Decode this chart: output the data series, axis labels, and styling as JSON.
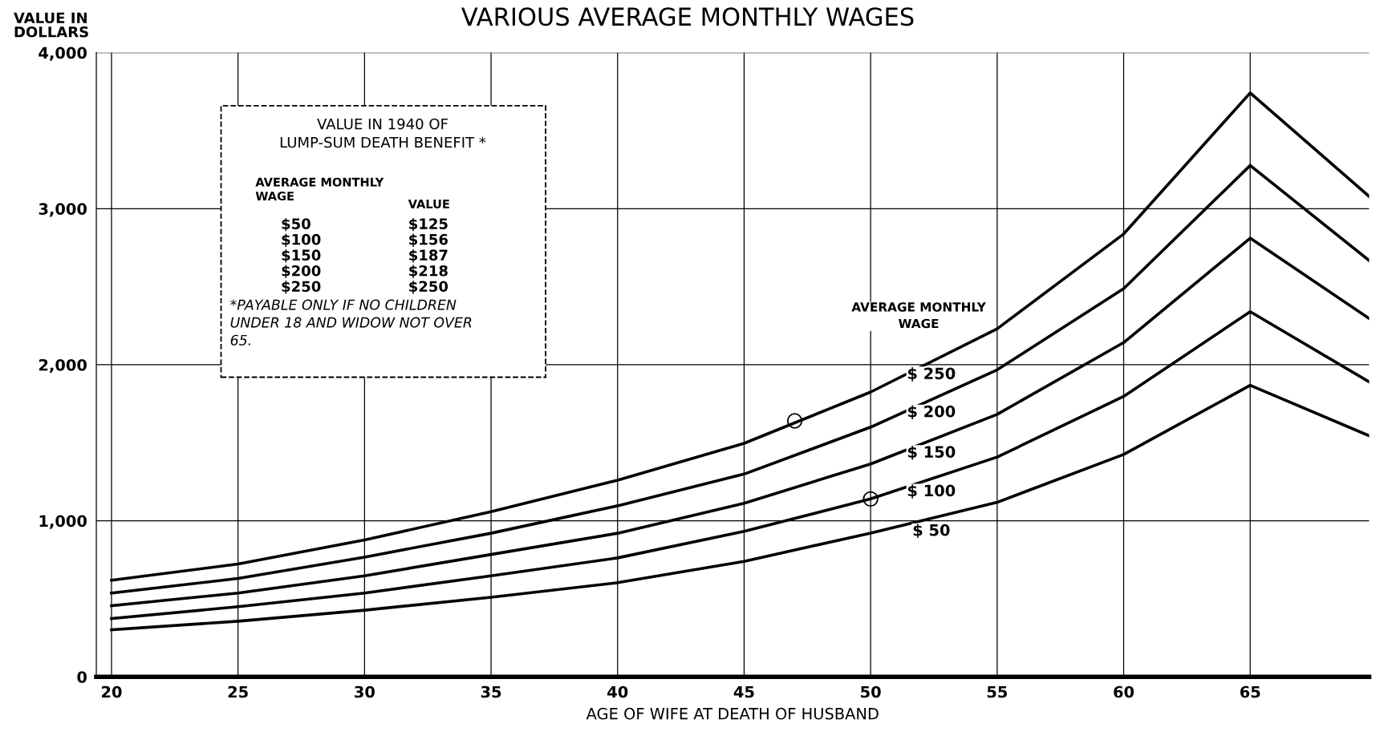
{
  "chart_data": {
    "type": "line",
    "title": "VARIOUS AVERAGE MONTHLY WAGES",
    "xlabel": "AGE OF WIFE AT DEATH OF HUSBAND",
    "ylabel": "VALUE IN\nDOLLARS",
    "legend_title": "AVERAGE MONTHLY\nWAGE",
    "x": [
      20,
      25,
      30,
      35,
      40,
      45,
      50,
      55,
      60,
      65,
      69.7
    ],
    "series": [
      {
        "name": "$ 250",
        "color": "#000000",
        "values": [
          619,
          723,
          877,
          1058,
          1260,
          1496,
          1825,
          2230,
          2838,
          3742,
          3079
        ]
      },
      {
        "name": "$ 200",
        "color": "#000000",
        "values": [
          537,
          630,
          767,
          920,
          1096,
          1299,
          1600,
          1967,
          2488,
          3277,
          2668
        ]
      },
      {
        "name": "$ 150",
        "color": "#000000",
        "values": [
          455,
          537,
          647,
          784,
          920,
          1112,
          1364,
          1682,
          2142,
          2811,
          2296
        ]
      },
      {
        "name": "$ 100",
        "color": "#000000",
        "values": [
          373,
          449,
          537,
          647,
          762,
          932,
          1140,
          1408,
          1797,
          2340,
          1890
        ]
      },
      {
        "name": "$ 50",
        "color": "#000000",
        "values": [
          301,
          356,
          427,
          510,
          603,
          740,
          921,
          1118,
          1425,
          1868,
          1545
        ]
      },
      {
        "type": "scatter",
        "marker": "circle",
        "color": "#000000",
        "x": [
          47,
          50
        ],
        "values": [
          1640,
          1140
        ]
      }
    ],
    "annotations": [
      "VALUE IN 1940 OF\nLUMP-SUM DEATH BENEFIT *",
      "AVERAGE MONTHLY\nWAGE",
      "VALUE",
      "$50\n$100\n$150\n$200\n$250",
      "$125\n$156\n$187\n$218\n$250",
      "*PAYABLE ONLY IF NO CHILDREN\nUNDER 18 AND WIDOW NOT OVER\n65."
    ],
    "xlim": [
      19.4,
      69.7
    ],
    "xticks": [
      20,
      25,
      30,
      35,
      40,
      45,
      50,
      55,
      60,
      65
    ],
    "ylim": [
      0,
      4000
    ],
    "yticks": [
      0,
      {
        "value": 1000,
        "label": "1,000"
      },
      {
        "value": 2000,
        "label": "2,000"
      },
      {
        "value": 3000,
        "label": "3,000"
      },
      {
        "value": 4000,
        "label": "4,000"
      }
    ],
    "grid": true,
    "legend": "right",
    "marker": "none",
    "line_style": "solid"
  }
}
